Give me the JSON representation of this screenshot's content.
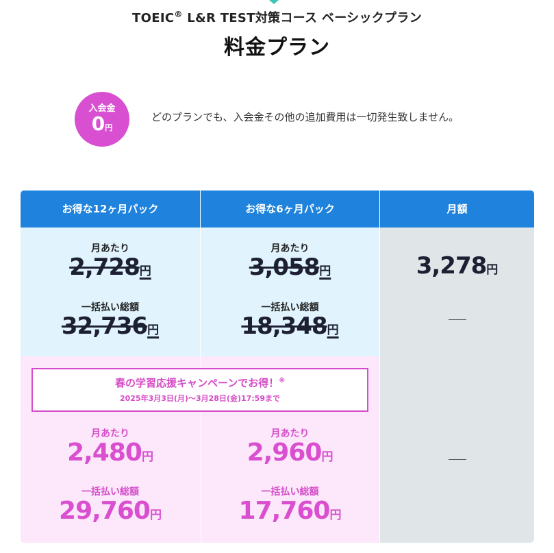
{
  "header": {
    "subtitle_pre": "TOEIC",
    "subtitle_reg": "®",
    "subtitle_post": " L&R TEST対策コース ベーシックプラン",
    "title": "料金プラン"
  },
  "fee": {
    "badge_label": "入会金",
    "badge_value": "0",
    "badge_unit": "円",
    "note": "どのプランでも、入会金その他の追加費用は一切発生致しません。"
  },
  "table": {
    "columns": [
      "お得な12ヶ月パック",
      "お得な6ヶ月パック",
      "月額"
    ],
    "labels": {
      "per_month": "月あたり",
      "total": "一括払い総額"
    },
    "unit": "円",
    "regular": {
      "pack12": {
        "per_month": "2,728",
        "total": "32,736"
      },
      "pack6": {
        "per_month": "3,058",
        "total": "18,348"
      },
      "monthly": {
        "per_month": "3,278"
      }
    },
    "campaign": {
      "title": "春の学習応援キャンペーンでお得！",
      "mark": "※",
      "period": "2025年3月3日(月)〜3月28日(金)17:59まで",
      "pack12": {
        "per_month": "2,480",
        "total": "29,760"
      },
      "pack6": {
        "per_month": "2,960",
        "total": "17,760"
      }
    }
  },
  "colors": {
    "header_blue": "#1f82dd",
    "regular_bg": "#e1f4fd",
    "monthly_bg": "#e0e6e8",
    "campaign_bg": "#fde8fb",
    "accent_pink": "#d84fd1",
    "logo_teal": "#3cc7b5"
  }
}
